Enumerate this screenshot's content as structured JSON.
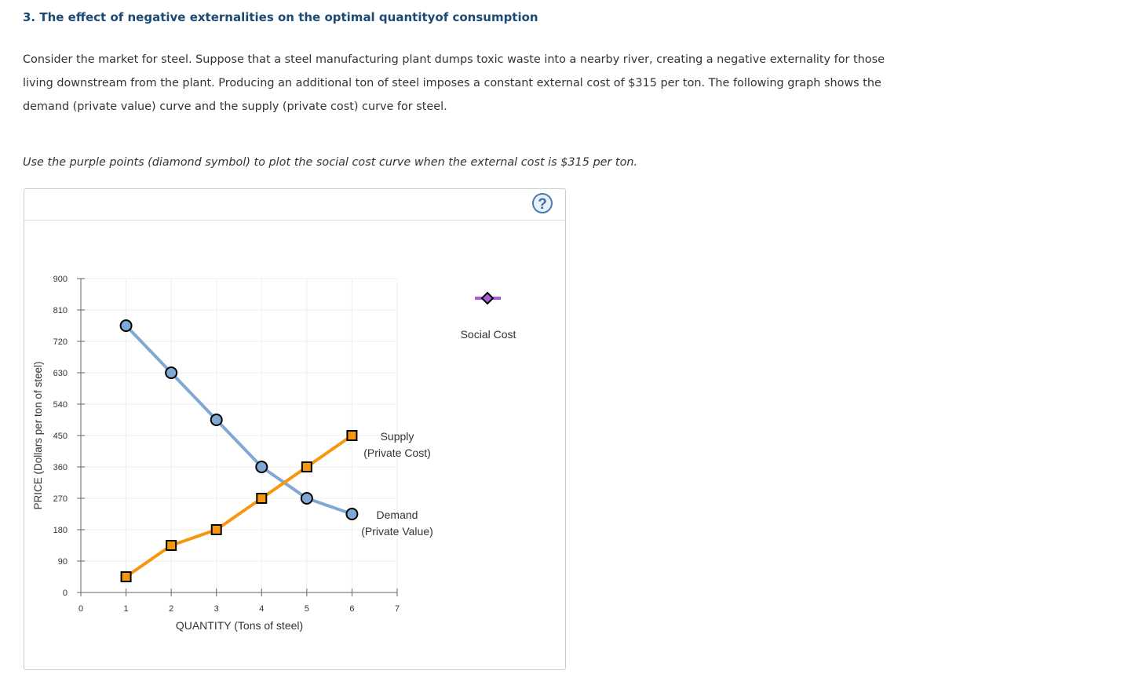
{
  "title": "3. The effect of negative externalities on the optimal quantityof consumption",
  "paragraph": "Consider the market for steel. Suppose that a steel manufacturing plant dumps toxic waste into a nearby river, creating a negative externality for those living downstream from the plant. Producing an additional ton of steel imposes a constant external cost of $315 per ton. The following graph shows the demand (private value) curve and the supply (private cost) curve for steel.",
  "instruction": "Use the purple points (diamond symbol) to plot the social cost curve when the external cost is $315 per ton.",
  "help_icon": "?",
  "palette": {
    "label": "Social Cost",
    "color": "#a85fd6",
    "icon": "diamond"
  },
  "chart_data": {
    "type": "line",
    "xlabel": "QUANTITY (Tons of steel)",
    "ylabel": "PRICE (Dollars per ton of steel)",
    "xlim": [
      0,
      7
    ],
    "ylim": [
      0,
      900
    ],
    "xticks": [
      "0",
      "1",
      "2",
      "3",
      "4",
      "5",
      "6",
      "7"
    ],
    "yticks": [
      "0",
      "90",
      "180",
      "270",
      "360",
      "450",
      "540",
      "630",
      "720",
      "810",
      "900"
    ],
    "grid": true,
    "series": [
      {
        "name": "Demand",
        "sublabel": "(Private Value)",
        "marker": "circle",
        "color": "#7fa9d4",
        "x": [
          1,
          2,
          3,
          4,
          5,
          6
        ],
        "y": [
          765,
          630,
          495,
          360,
          270,
          225
        ]
      },
      {
        "name": "Supply",
        "sublabel": "(Private Cost)",
        "marker": "square",
        "color": "#f7970f",
        "x": [
          1,
          2,
          3,
          4,
          5,
          6
        ],
        "y": [
          45,
          135,
          180,
          270,
          360,
          450
        ]
      }
    ]
  }
}
